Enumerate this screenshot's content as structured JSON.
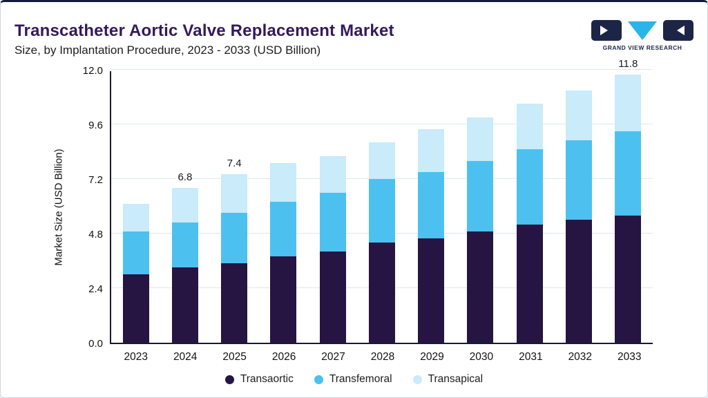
{
  "header": {
    "title": "Transcatheter Aortic Valve Replacement Market",
    "subtitle": "Size, by Implantation Procedure, 2023 - 2033 (USD Billion)"
  },
  "logo": {
    "brand": "GRAND VIEW RESEARCH"
  },
  "colors": {
    "title_purple": "#33195c",
    "top_border_navy": "#121c3a",
    "logo_navy": "#1d2547",
    "logo_cyan": "#2ab5e8"
  },
  "chart_data": {
    "type": "bar",
    "stacked": true,
    "title": "Transcatheter Aortic Valve Replacement Market",
    "subtitle": "Size, by Implantation Procedure, 2023 - 2033 (USD Billion)",
    "ylabel": "Market Size (USD Billion)",
    "xlabel": "",
    "ylim": [
      0,
      12
    ],
    "yticks": [
      "0.0",
      "2.4",
      "4.8",
      "7.2",
      "9.6",
      "12.0"
    ],
    "grid": true,
    "legend_position": "bottom",
    "categories": [
      "2023",
      "2024",
      "2025",
      "2026",
      "2027",
      "2028",
      "2029",
      "2030",
      "2031",
      "2032",
      "2033"
    ],
    "series": [
      {
        "name": "Transaortic",
        "color": "#261442",
        "values": [
          3.0,
          3.3,
          3.5,
          3.8,
          4.0,
          4.4,
          4.6,
          4.9,
          5.2,
          5.4,
          5.6
        ]
      },
      {
        "name": "Transfemoral",
        "color": "#4cc1ef",
        "values": [
          1.9,
          2.0,
          2.2,
          2.4,
          2.6,
          2.8,
          2.9,
          3.1,
          3.3,
          3.5,
          3.7
        ]
      },
      {
        "name": "Transapical",
        "color": "#c9ebfa",
        "values": [
          1.2,
          1.5,
          1.7,
          1.7,
          1.6,
          1.6,
          1.9,
          1.9,
          2.0,
          2.2,
          2.5
        ]
      }
    ],
    "totals": [
      6.1,
      6.8,
      7.4,
      7.9,
      8.2,
      8.8,
      9.4,
      9.9,
      10.5,
      11.1,
      11.8
    ],
    "point_labels": {
      "2024": "6.8",
      "2025": "7.4",
      "2033": "11.8"
    }
  }
}
